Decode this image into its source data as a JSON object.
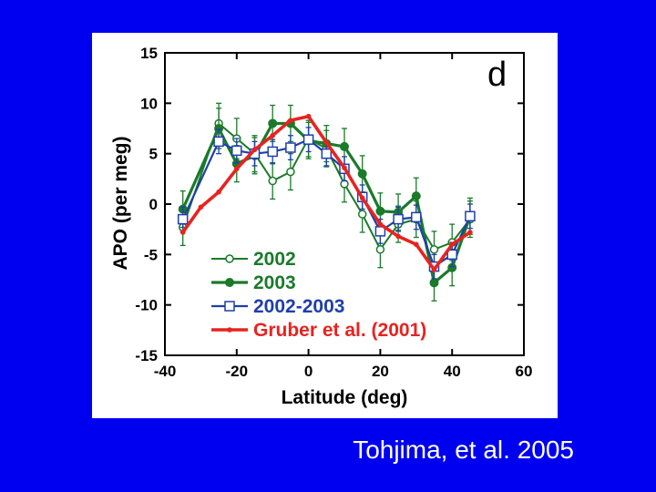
{
  "slide": {
    "citation": "Tohjima, et al. 2005",
    "background_color": "#0000f0"
  },
  "chart_data": {
    "type": "line",
    "panel_label": "d",
    "xlabel": "Latitude (deg)",
    "ylabel": "APO (per meg)",
    "xlim": [
      -40,
      60
    ],
    "ylim": [
      -15,
      15
    ],
    "xticks": [
      -40,
      -20,
      0,
      20,
      40,
      60
    ],
    "yticks": [
      15,
      10,
      5,
      0,
      -5,
      -10,
      -15
    ],
    "legend_position": "bottom-left",
    "grid": false,
    "series": [
      {
        "name": "2002",
        "color": "#1a7a2a",
        "marker": "open-circle",
        "x": [
          -35,
          -25,
          -20,
          -15,
          -10,
          -5,
          0,
          5,
          10,
          15,
          20,
          25,
          30,
          35,
          40,
          45
        ],
        "y": [
          -2.3,
          8.0,
          6.5,
          5.0,
          2.3,
          3.2,
          6.5,
          5.5,
          2.0,
          -1.0,
          -4.5,
          -2.0,
          -1.5,
          -4.5,
          -3.8,
          -1.5
        ],
        "error": [
          1.8,
          2.0,
          2.0,
          1.8,
          1.8,
          1.8,
          1.8,
          1.8,
          1.8,
          1.8,
          1.8,
          1.8,
          1.8,
          1.8,
          1.8,
          1.8
        ]
      },
      {
        "name": "2003",
        "color": "#1a7a2a",
        "marker": "filled-circle",
        "x": [
          -35,
          -25,
          -20,
          -15,
          -10,
          -5,
          0,
          5,
          10,
          15,
          20,
          25,
          30,
          35,
          40,
          45
        ],
        "y": [
          -0.5,
          7.5,
          4.0,
          4.8,
          8.0,
          8.0,
          6.3,
          6.0,
          5.7,
          3.0,
          -0.7,
          -0.8,
          0.8,
          -7.8,
          -6.3,
          -1.2
        ],
        "error": [
          1.8,
          2.0,
          1.8,
          1.8,
          1.8,
          1.8,
          1.8,
          1.8,
          1.8,
          1.8,
          1.8,
          1.8,
          1.8,
          1.8,
          1.8,
          1.8
        ]
      },
      {
        "name": "2002-2003",
        "color": "#1f3faa",
        "marker": "open-square",
        "x": [
          -35,
          -25,
          -20,
          -15,
          -10,
          -5,
          0,
          5,
          10,
          15,
          20,
          25,
          30,
          35,
          40,
          45
        ],
        "y": [
          -1.5,
          6.2,
          5.3,
          5.0,
          5.2,
          5.6,
          6.4,
          5.0,
          3.5,
          0.7,
          -2.7,
          -1.5,
          -1.3,
          -6.2,
          -5.0,
          -1.2
        ],
        "error": [
          1.2,
          1.2,
          1.2,
          1.2,
          1.2,
          1.2,
          1.2,
          1.2,
          1.2,
          1.2,
          1.2,
          1.2,
          1.2,
          1.2,
          1.2,
          1.2
        ]
      },
      {
        "name": "Gruber et al. (2001)",
        "color": "#e8231f",
        "marker": "small-filled-circle",
        "x": [
          -35,
          -30,
          -25,
          -20,
          -15,
          -10,
          -5,
          0,
          5,
          10,
          15,
          20,
          25,
          30,
          35,
          40,
          45
        ],
        "y": [
          -2.8,
          -0.3,
          1.2,
          3.5,
          5.4,
          6.8,
          8.3,
          8.7,
          6.1,
          3.6,
          0.6,
          -2.0,
          -3.2,
          -4.0,
          -6.5,
          -4.0,
          -2.8
        ]
      }
    ]
  }
}
